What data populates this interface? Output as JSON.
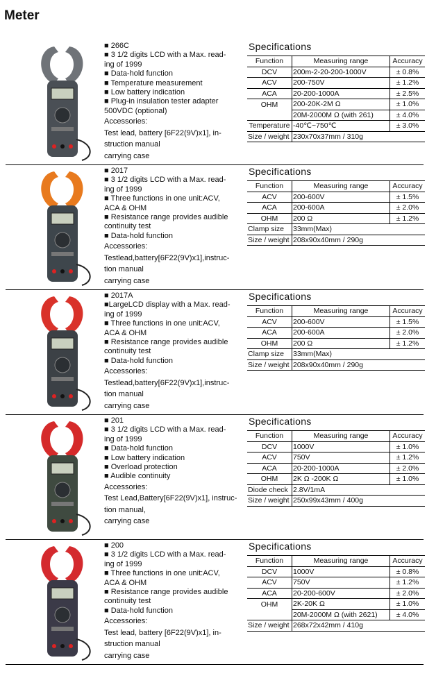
{
  "title": "Meter",
  "spec_heading": "Specifications",
  "headers": {
    "function": "Function",
    "range": "Measuring range",
    "accuracy": "Accuracy"
  },
  "products": [
    {
      "model": "266C",
      "jaw_color": "#6f7378",
      "body_color": "#4a4f55",
      "features": [
        [
          "■ 266C"
        ],
        [
          "■ 3 1/2 digits LCD  with a Max. read-",
          "ing of 1999"
        ],
        [
          "■ Data-hold function"
        ],
        [
          "■ Temperature  measurement"
        ],
        [
          "■ Low battery indication"
        ],
        [
          "■ Plug-in insulation tester adapter",
          "500VDC (optional)"
        ]
      ],
      "accessories": [
        "Accessories:",
        "Test lead, battery [6F22(9V)x1], in-",
        "struction manual",
        "carrying case"
      ],
      "specs": [
        {
          "f": "DCV",
          "r": "200m-2-20-200-1000V",
          "a": "± 0.8%"
        },
        {
          "f": "ACV",
          "r": "200-750V",
          "a": "± 1.2%"
        },
        {
          "f": "ACA",
          "r": "20-200-1000A",
          "a": "± 2.5%"
        },
        {
          "f": "OHM",
          "r": "200-20K-2M Ω",
          "a": "± 1.0%",
          "cont": true
        },
        {
          "f": "",
          "r": "20M-2000M Ω (with 261)",
          "a": "± 4.0%"
        },
        {
          "f": "Temperature",
          "r": "-40℃~750℃",
          "a": "± 3.0%"
        },
        {
          "f": "Size / weight",
          "r": "230x70x37mm / 310g",
          "a": null
        }
      ]
    },
    {
      "model": "2017",
      "jaw_color": "#e87a1e",
      "body_color": "#3e464c",
      "features": [
        [
          "■ 2017"
        ],
        [
          "■ 3 1/2 digits LCD with a Max. read-",
          "ing of 1999"
        ],
        [
          "■ Three functions in one unit:ACV,",
          "ACA & OHM"
        ],
        [
          "■ Resistance range provides audible",
          "continuity test"
        ],
        [
          "■ Data-hold function"
        ]
      ],
      "accessories": [
        "Accessories:",
        "Testlead,battery[6F22(9V)x1],instruc-",
        "tion manual",
        "carrying case"
      ],
      "specs": [
        {
          "f": "ACV",
          "r": "200-600V",
          "a": "± 1.5%"
        },
        {
          "f": "ACA",
          "r": "200-600A",
          "a": "± 2.0%"
        },
        {
          "f": "OHM",
          "r": "200 Ω",
          "a": "± 1.2%"
        },
        {
          "f": "Clamp size",
          "r": "33mm(Max)",
          "a": null
        },
        {
          "f": "Size / weight",
          "r": "208x90x40mm / 290g",
          "a": null
        }
      ]
    },
    {
      "model": "2017A",
      "jaw_color": "#d9322a",
      "body_color": "#3c4146",
      "features": [
        [
          "■ 2017A"
        ],
        [
          "■LargeLCD display with a Max. read-",
          "ing of 1999"
        ],
        [
          "■ Three functions in one unit:ACV,",
          "ACA & OHM"
        ],
        [
          "■ Resistance range provides audible",
          "continuity test"
        ],
        [
          "■ Data-hold function"
        ]
      ],
      "accessories": [
        "Accessories:",
        "Testlead,battery[6F22(9V)x1],instruc-",
        "tion manual",
        "carrying case"
      ],
      "specs": [
        {
          "f": "ACV",
          "r": "200-600V",
          "a": "± 1.5%"
        },
        {
          "f": "ACA",
          "r": "200-600A",
          "a": "± 2.0%"
        },
        {
          "f": "OHM",
          "r": "200 Ω",
          "a": "± 1.2%"
        },
        {
          "f": "Clamp  size",
          "r": "33mm(Max)",
          "a": null
        },
        {
          "f": "Size / weight",
          "r": "208x90x40mm / 290g",
          "a": null
        }
      ]
    },
    {
      "model": "201",
      "jaw_color": "#d52a2a",
      "body_color": "#3f4a40",
      "features": [
        [
          "■ 201"
        ],
        [
          "■ 3 1/2 digits LCD  with a Max. read-",
          "ing of 1999"
        ],
        [
          "■ Data-hold function"
        ],
        [
          "■ Low battery indication"
        ],
        [
          "■ Overload protection"
        ],
        [
          "■ Audible continuity"
        ]
      ],
      "accessories": [
        "Accessories:",
        "Test Lead,Battery[6F22(9V)x1], instruc-",
        "tion manual,",
        "carrying case"
      ],
      "specs": [
        {
          "f": "DCV",
          "r": "1000V",
          "a": "± 1.0%"
        },
        {
          "f": "ACV",
          "r": "750V",
          "a": "± 1.2%"
        },
        {
          "f": "ACA",
          "r": "20-200-1000A",
          "a": "± 2.0%"
        },
        {
          "f": "OHM",
          "r": "2K Ω -200K Ω",
          "a": "± 1.0%"
        },
        {
          "f": "Diode check",
          "r": "2.8V/1mA",
          "a": null
        },
        {
          "f": "Size / weight",
          "r": "250x99x43mm / 400g",
          "a": null
        }
      ]
    },
    {
      "model": "200",
      "jaw_color": "#d42a2e",
      "body_color": "#3b3a48",
      "features": [
        [
          "■ 200"
        ],
        [
          "■ 3 1/2 digits LCD  with a Max. read-",
          "ing of 1999"
        ],
        [
          "■ Three functions in one unit:ACV,",
          "ACA & OHM"
        ],
        [
          "■ Resistance range provides audible",
          "continuity test"
        ],
        [
          "■ Data-hold function"
        ]
      ],
      "accessories": [
        "Accessories:",
        "Test lead, battery  [6F22(9V)x1], in-",
        "struction manual",
        "carrying case"
      ],
      "specs": [
        {
          "f": "DCV",
          "r": "1000V",
          "a": "± 0.8%"
        },
        {
          "f": "ACV",
          "r": "750V",
          "a": "± 1.2%"
        },
        {
          "f": "ACA",
          "r": "20-200-600V",
          "a": "± 2.0%"
        },
        {
          "f": "OHM",
          "r": "2K-20K Ω",
          "a": "± 1.0%",
          "cont": true
        },
        {
          "f": "",
          "r": "20M-2000M Ω (with 2621)",
          "a": "± 4.0%"
        },
        {
          "f": "Size / weight",
          "r": "268x72x42mm / 410g",
          "a": null
        }
      ]
    }
  ]
}
